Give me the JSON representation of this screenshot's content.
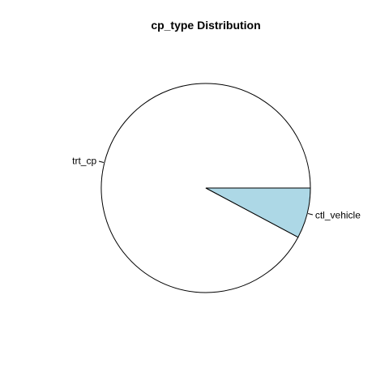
{
  "chart_data": {
    "type": "pie",
    "title": "cp_type Distribution",
    "slices": [
      {
        "label": "trt_cp",
        "value": 92.2,
        "color": "#ffffff"
      },
      {
        "label": "ctl_vehicle",
        "value": 7.8,
        "color": "#add8e6"
      }
    ],
    "start_angle_deg": 0,
    "direction": "counterclockwise"
  }
}
